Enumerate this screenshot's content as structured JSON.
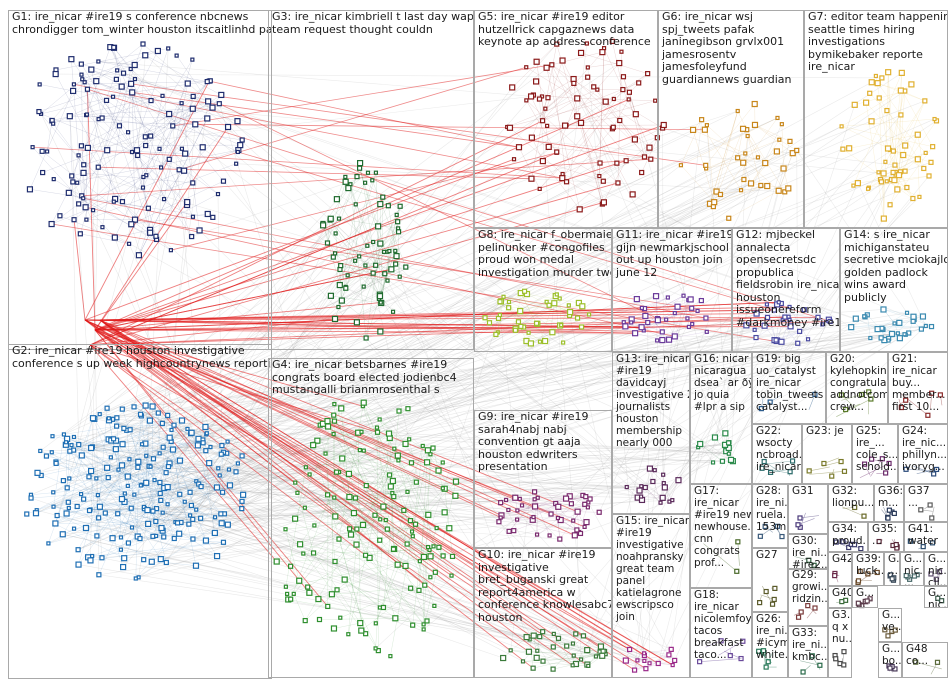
{
  "graph": {
    "groups": [
      {
        "id": "G1",
        "label": "G1: ire_nicar #ire19 s conference nbcnews\nchrondigger tom_winter houston itscaitlinhd panel",
        "color": "#1f2d6e"
      },
      {
        "id": "G2",
        "label": "G2: ire_nicar #ire19 houston investigative\nconference s up week highcountrynews reporting",
        "color": "#1f6fb4"
      },
      {
        "id": "G3",
        "label": "G3: ire_nicar kimbriell t last day wapo\nteam request thought couldn",
        "color": "#1f6b2e"
      },
      {
        "id": "G4",
        "label": "G4: ire_nicar betsbarnes #ire19\ncongrats board elected jodienbc4\nmustangalli brianmrosenthal s",
        "color": "#2f8f2f"
      },
      {
        "id": "G5",
        "label": "G5: ire_nicar #ire19 editor\nhutzellrick capgaznews data\nkeynote ap address conference",
        "color": "#8b1a1a"
      },
      {
        "id": "G6",
        "label": "G6: ire_nicar wsj\nspj_tweets pafak\njaninegibson grvlx001\njamesrosentv\njamesfoleyfund\nguardiannews guardian",
        "color": "#c8861a"
      },
      {
        "id": "G7",
        "label": "G7: editor team happening\nseattle times hiring\ninvestigations\nbymikebaker reporte\nire_nicar",
        "color": "#e0b030"
      },
      {
        "id": "G8",
        "label": "G8: ire_nicar f_obermaier\npelinunker #congofiles\nproud won medal\ninvestigation murder two",
        "color": "#9cbf2a"
      },
      {
        "id": "G9",
        "label": "G9: ire_nicar #ire19\nsarah4nabj nabj\nconvention gt aaja\nhouston edwriters\npresentation",
        "color": "#7a2a6e"
      },
      {
        "id": "G10",
        "label": "G10: ire_nicar #ire19\ninvestigative\nbret_buganski great\nreport4america w\nconference knowlesabc7\nhouston",
        "color": "#3a7a3a"
      },
      {
        "id": "G11",
        "label": "G11: ire_nicar #ire19\ngijn newmarkjschool\nout up houston join\njune 12",
        "color": "#6a3a9a"
      },
      {
        "id": "G12",
        "label": "G12: mjbeckel\nannalecta\nopensecretsdc\npropublica\nfieldsrobin ire_nicar\nhouston\nissueonereform\n#darkmoney #ire19",
        "color": "#4a4aa0"
      },
      {
        "id": "G13",
        "label": "G13: ire_nicar\n#ire19\ndavidcayj\ninvestigative 2\njournalists\nhouston\nmembership\nnearly 000",
        "color": "#5a2a5a"
      },
      {
        "id": "G14",
        "label": "G14: s ire_nicar\nmichiganstateu\nsecretive mciokajlo\ngolden padlock\nwins award\npublicly",
        "color": "#3a8ab0"
      },
      {
        "id": "G15",
        "label": "G15: ire_nicar\n#ire19\ninvestigative\nnoahpransky\ngreat team\npanel\nkatielagrone\newscripsco\njoin",
        "color": "#9a2a8a"
      },
      {
        "id": "G16",
        "label": "G16: nicar\nnicaragua\ndsea` ar ðÿ\njo quia\n#lpr a sip",
        "color": "#2a8a4a"
      },
      {
        "id": "G17",
        "label": "G17:\nire_nicar\n#ire19 new\nnewhouse...\ncnn\ncongrats\nprof...",
        "color": "#4a6a2a"
      },
      {
        "id": "G18",
        "label": "G18:\nire_nicar\nnicolemfoy\ntacos\nbreakfast\ntaco...",
        "color": "#6a4a9a"
      },
      {
        "id": "G19",
        "label": "G19: big\nuo_catalyst\nire_nicar\ntobin_tweets\ncatalyst...",
        "color": "#2a5a8a"
      },
      {
        "id": "G20",
        "label": "G20:\nkylehopkin...\ncongratula...\naddnotcom\ncrew...",
        "color": "#5a7a2a"
      },
      {
        "id": "G21",
        "label": "G21:\nire_nicar\nbuy...\nmember...\nfirst 10...",
        "color": "#8a2a2a"
      },
      {
        "id": "G22",
        "label": "G22:\nwsocty\nncbroad...\nire_nicar...",
        "color": "#2a6a6a"
      },
      {
        "id": "G23",
        "label": "G23: je",
        "color": "#7a7a2a"
      },
      {
        "id": "G24",
        "label": "G24:\nire_nic...\nphillyn...\nivoryg...",
        "color": "#2a4a7a"
      },
      {
        "id": "G25",
        "label": "G25:\nire_...\ncole_s...\nschold...",
        "color": "#6a2a6a"
      },
      {
        "id": "G26",
        "label": "G26:\nire_ni...\n#icymi\nwhite...",
        "color": "#2a7a5a"
      },
      {
        "id": "G27",
        "label": "G27",
        "color": "#5a5a2a"
      },
      {
        "id": "G28",
        "label": "G28:\nire_ni...\nruela...\n153m...",
        "color": "#3a5a7a"
      },
      {
        "id": "G29",
        "label": "G29:\ngrowi...\nridzin...",
        "color": "#7a3a3a"
      },
      {
        "id": "G30",
        "label": "G30:\nire_ni...\n#ire2...",
        "color": "#2a5a3a"
      },
      {
        "id": "G31",
        "label": "G31",
        "color": "#4a3a7a"
      },
      {
        "id": "G32",
        "label": "G32:\nlionpu...",
        "color": "#6a6a2a"
      },
      {
        "id": "G33",
        "label": "G33:\nire_ni...\nkmbc...",
        "color": "#2a6a4a"
      },
      {
        "id": "G34",
        "label": "G34:\nproud...",
        "color": "#3a3a6a"
      },
      {
        "id": "G35",
        "label": "G35:\n...",
        "color": "#5a2a3a"
      },
      {
        "id": "G36",
        "label": "G36:\nm...",
        "color": "#2a3a5a"
      },
      {
        "id": "G37",
        "label": "G37\n...",
        "color": "#5a5a5a"
      },
      {
        "id": "G38",
        "label": "G3...\nq x\nnu...",
        "color": "#4a4a4a"
      },
      {
        "id": "G39",
        "label": "G39:\nluck...",
        "color": "#6a4a2a"
      },
      {
        "id": "G40",
        "label": "G40",
        "color": "#3a6a3a"
      },
      {
        "id": "G41",
        "label": "G41:\nwater",
        "color": "#2a4a6a"
      },
      {
        "id": "G42",
        "label": "G42",
        "color": "#6a2a4a"
      },
      {
        "id": "G43",
        "label": "G...\nnic...\n...",
        "color": "#4a6a6a"
      },
      {
        "id": "G44",
        "label": "G...\nnic...\ncli...",
        "color": "#5a4a6a"
      },
      {
        "id": "G45",
        "label": "G...\nnic...\nnu...",
        "color": "#3a5a4a"
      },
      {
        "id": "G46",
        "label": "G...\nve...",
        "color": "#6a5a3a"
      },
      {
        "id": "G47",
        "label": "G...\nbo...",
        "color": "#4a3a5a"
      },
      {
        "id": "G48",
        "label": "G48\nco...",
        "color": "#5a6a3a"
      },
      {
        "id": "G49",
        "label": "G...\n...",
        "color": "#3a4a5a"
      },
      {
        "id": "G50",
        "label": "G...\n...",
        "color": "#5a3a4a"
      }
    ]
  }
}
